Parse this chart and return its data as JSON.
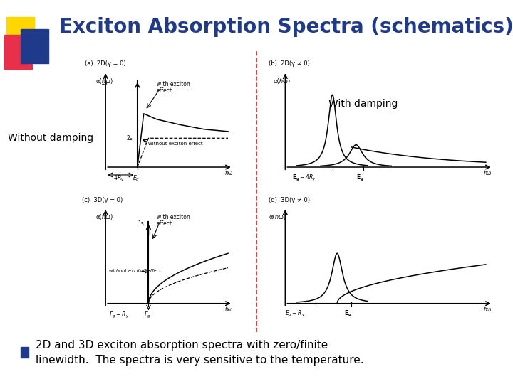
{
  "title": "Exciton Absorption Spectra (schematics)",
  "title_color": "#1F3A8A",
  "title_fontsize": 20,
  "bg_color": "#FFFFFF",
  "label_without_damping": "Without damping",
  "label_with_damping": "With damping",
  "bullet_text_line1": "2D and 3D exciton absorption spectra with zero/finite",
  "bullet_text_line2": "linewidth.  The spectra is very sensitive to the temperature.",
  "bullet_color": "#1F3A8A",
  "panel_label_a": "(a)  2D(γ = 0)",
  "panel_label_b": "(b)  2D(γ ≠ 0)",
  "panel_label_c": "(c)  3D(γ = 0)",
  "panel_label_d": "(d)  3D(γ ≠ 0)",
  "axis_label_alpha": "α(ℏω)",
  "axis_label_hw": "ℏω",
  "dashed_divider_color": "#CC2222",
  "sq_yellow": "#FFD700",
  "sq_red": "#E8304A",
  "sq_blue": "#1F3A8A"
}
